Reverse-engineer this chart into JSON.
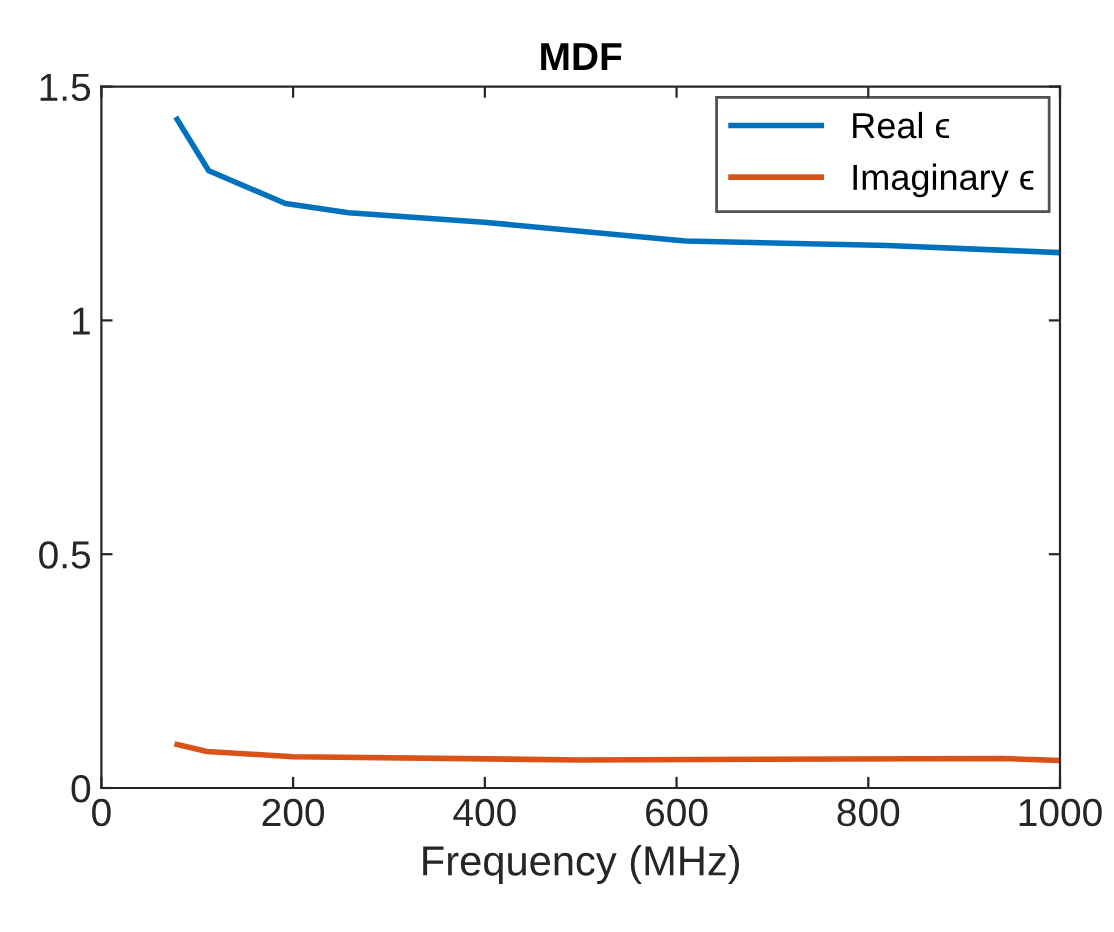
{
  "chart_data": {
    "type": "line",
    "title": "MDF",
    "xlabel": "Frequency (MHz)",
    "series": [
      {
        "name": "Real ϵ",
        "color": "#0072bd",
        "x": [
          79,
          112,
          192,
          258,
          399,
          609,
          820,
          1000
        ],
        "values": [
          1.43,
          1.32,
          1.25,
          1.23,
          1.21,
          1.17,
          1.16,
          1.145
        ]
      },
      {
        "name": "Imaginary ϵ",
        "color": "#d95319",
        "x": [
          79,
          110,
          200,
          500,
          940,
          1000
        ],
        "values": [
          0.093,
          0.078,
          0.067,
          0.06,
          0.063,
          0.059
        ]
      }
    ],
    "xlim": [
      0,
      1000
    ],
    "xticks": [
      0,
      200,
      400,
      600,
      800,
      1000
    ],
    "ylim": [
      0,
      1.5
    ],
    "yticks": [
      0,
      {
        "value": 0.5,
        "label": "0.5"
      },
      1,
      {
        "value": 1.5,
        "label": "1.5"
      }
    ],
    "grid": false,
    "legend": "top right",
    "marker": "none",
    "line_style": "solid"
  }
}
